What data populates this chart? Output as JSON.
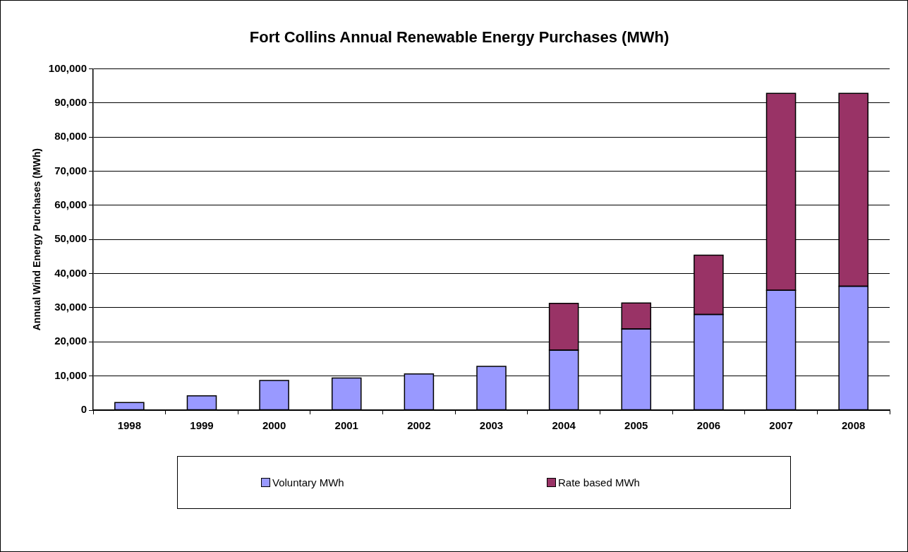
{
  "chart_data": {
    "type": "bar",
    "title": "Fort Collins Annual Renewable Energy Purchases (MWh)",
    "ylabel": "Annual Wind Energy Purchases (MWh)",
    "categories": [
      "1998",
      "1999",
      "2000",
      "2001",
      "2002",
      "2003",
      "2004",
      "2005",
      "2006",
      "2007",
      "2008"
    ],
    "series": [
      {
        "name": "Voluntary MWh",
        "color": "#9999ff",
        "values": [
          2200,
          4200,
          8700,
          9400,
          10600,
          12800,
          17600,
          23800,
          28000,
          35100,
          36300
        ]
      },
      {
        "name": "Rate based MWh",
        "color": "#993366",
        "values": [
          null,
          null,
          null,
          null,
          null,
          null,
          13700,
          7600,
          17400,
          57700,
          56500
        ]
      }
    ],
    "stacked": true,
    "ylim": [
      0,
      100000
    ],
    "yticks": [
      {
        "value": 0,
        "label": "0"
      },
      {
        "value": 10000,
        "label": "10,000"
      },
      {
        "value": 20000,
        "label": "20,000"
      },
      {
        "value": 30000,
        "label": "30,000"
      },
      {
        "value": 40000,
        "label": "40,000"
      },
      {
        "value": 50000,
        "label": "50,000"
      },
      {
        "value": 60000,
        "label": "60,000"
      },
      {
        "value": 70000,
        "label": "70,000"
      },
      {
        "value": 80000,
        "label": "80,000"
      },
      {
        "value": 90000,
        "label": "90,000"
      },
      {
        "value": 100000,
        "label": "100,000"
      }
    ],
    "grid": "y",
    "legend": "bottom"
  }
}
